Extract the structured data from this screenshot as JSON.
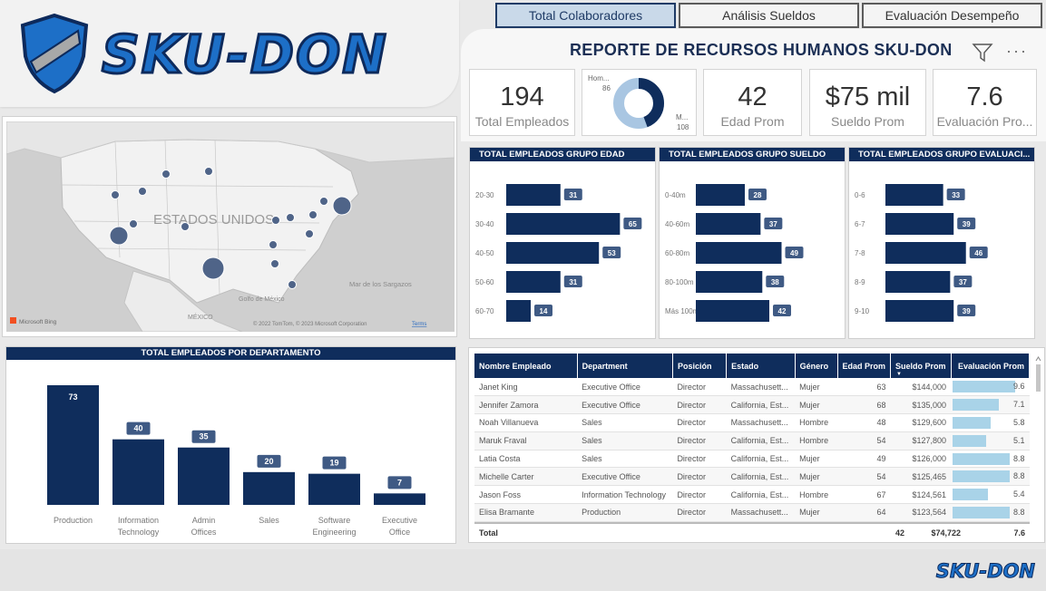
{
  "brand": {
    "name": "SKU-DON",
    "primary": "#1d6fc7",
    "dark": "#0f2d5c"
  },
  "tabs": [
    {
      "label": "Total Colaboradores",
      "active": true
    },
    {
      "label": "Análisis Sueldos",
      "active": false
    },
    {
      "label": "Evaluación Desempeño",
      "active": false
    }
  ],
  "header": {
    "title": "REPORTE DE RECURSOS HUMANOS SKU-DON",
    "more": "···"
  },
  "kpis": {
    "total_empleados": {
      "value": "194",
      "label": "Total Empleados"
    },
    "edad_prom": {
      "value": "42",
      "label": "Edad Prom"
    },
    "sueldo_prom": {
      "value": "$75 mil",
      "label": "Sueldo Prom"
    },
    "evaluacion_prom": {
      "value": "7.6",
      "label": "Evaluación Pro..."
    }
  },
  "gender_donut": {
    "hombre": {
      "label": "Hom...",
      "value": 86,
      "color": "#0f2d5c"
    },
    "mujer": {
      "label": "M...",
      "value": 108,
      "color": "#a9c6e2"
    }
  },
  "map": {
    "country_label": "ESTADOS UNIDOS",
    "mexico_label": "MÉXICO",
    "gulf_label": "Golfo de México",
    "sargasso_label": "Mar de los Sargazos",
    "bing_label": "Microsoft Bing",
    "copyright": "© 2022 TomTom, © 2023 Microsoft Corporation",
    "terms": "Terms",
    "bubble_color": "#4f6488"
  },
  "chart_data": [
    {
      "type": "bar",
      "orientation": "horizontal",
      "title": "TOTAL EMPLEADOS GRUPO EDAD",
      "categories": [
        "20-30",
        "30-40",
        "40-50",
        "50-60",
        "60-70"
      ],
      "values": [
        31,
        65,
        53,
        31,
        14
      ]
    },
    {
      "type": "bar",
      "orientation": "horizontal",
      "title": "TOTAL EMPLEADOS GRUPO SUELDO",
      "categories": [
        "0-40m",
        "40-60m",
        "60-80m",
        "80-100m",
        "Más 100m"
      ],
      "values": [
        28,
        37,
        49,
        38,
        42
      ]
    },
    {
      "type": "bar",
      "orientation": "horizontal",
      "title": "TOTAL EMPLEADOS GRUPO EVALUACI...",
      "categories": [
        "0-6",
        "6-7",
        "7-8",
        "8-9",
        "9-10"
      ],
      "values": [
        33,
        39,
        46,
        37,
        39
      ]
    },
    {
      "type": "bar",
      "orientation": "vertical",
      "title": "TOTAL EMPLEADOS POR DEPARTAMENTO",
      "categories": [
        "Production",
        "Information Technology",
        "Admin Offices",
        "Sales",
        "Software Engineering",
        "Executive Office"
      ],
      "values": [
        73,
        40,
        35,
        20,
        19,
        7
      ]
    }
  ],
  "table": {
    "columns": [
      "Nombre Empleado",
      "Department",
      "Posición",
      "Estado",
      "Género",
      "Edad Prom",
      "Sueldo Prom",
      "Evaluación Prom"
    ],
    "rows": [
      [
        "Janet King",
        "Executive Office",
        "Director",
        "Massachusett...",
        "Mujer",
        "63",
        "$144,000",
        "9.6"
      ],
      [
        "Jennifer Zamora",
        "Executive Office",
        "Director",
        "California, Est...",
        "Mujer",
        "68",
        "$135,000",
        "7.1"
      ],
      [
        "Noah Villanueva",
        "Sales",
        "Director",
        "Massachusett...",
        "Hombre",
        "48",
        "$129,600",
        "5.8"
      ],
      [
        "Maruk Fraval",
        "Sales",
        "Director",
        "California, Est...",
        "Hombre",
        "54",
        "$127,800",
        "5.1"
      ],
      [
        "Latia Costa",
        "Sales",
        "Director",
        "California, Est...",
        "Mujer",
        "49",
        "$126,000",
        "8.8"
      ],
      [
        "Michelle Carter",
        "Executive Office",
        "Director",
        "California, Est...",
        "Mujer",
        "54",
        "$125,465",
        "8.8"
      ],
      [
        "Jason Foss",
        "Information Technology",
        "Director",
        "California, Est...",
        "Hombre",
        "67",
        "$124,561",
        "5.4"
      ],
      [
        "Elisa Bramante",
        "Production",
        "Director",
        "Massachusett...",
        "Mujer",
        "64",
        "$123,564",
        "8.8"
      ]
    ],
    "total": {
      "label": "Total",
      "edad": "42",
      "sueldo": "$74,722",
      "evaluacion": "7.6"
    },
    "sort_indicator": "▼"
  },
  "footer": {
    "logo": "SKU-DON"
  }
}
